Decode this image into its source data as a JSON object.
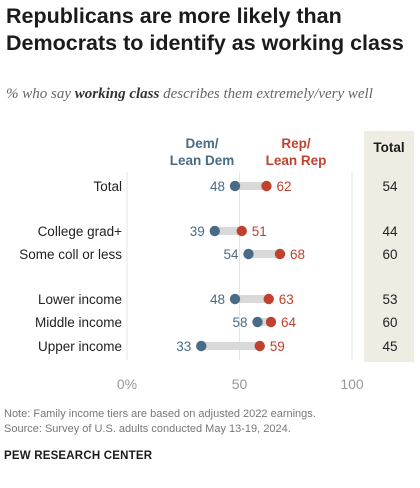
{
  "title": "Republicans are more likely than Democrats to identify as working class",
  "subtitle": {
    "pre": "% who say ",
    "emphasis": "working class",
    "post": " describes them extremely/very well"
  },
  "legend": {
    "dem": "Dem/\nLean Dem",
    "rep": "Rep/\nLean Rep",
    "total": "Total"
  },
  "colors": {
    "dem": "#4a6b86",
    "rep": "#c0412e",
    "connector": "#d9d9d9",
    "total_panel": "#efede3"
  },
  "chart_data": {
    "type": "dot-plot",
    "xlim": [
      0,
      100
    ],
    "xticks": [
      {
        "value": 0,
        "label": "0%"
      },
      {
        "value": 50,
        "label": "50"
      },
      {
        "value": 100,
        "label": "100"
      }
    ],
    "rows": [
      {
        "label": "Total",
        "dem": 48,
        "rep": 62,
        "total": 54
      },
      {
        "label": "College grad+",
        "dem": 39,
        "rep": 51,
        "total": 44
      },
      {
        "label": "Some coll or less",
        "dem": 54,
        "rep": 68,
        "total": 60
      },
      {
        "label": "Lower income",
        "dem": 48,
        "rep": 63,
        "total": 53
      },
      {
        "label": "Middle income",
        "dem": 58,
        "rep": 64,
        "total": 60
      },
      {
        "label": "Upper income",
        "dem": 33,
        "rep": 59,
        "total": 45
      }
    ]
  },
  "footer": {
    "note": "Note: Family income tiers are based on adjusted 2022 earnings.",
    "source": "Source: Survey of U.S. adults conducted May 13-19, 2024.",
    "brand": "PEW RESEARCH CENTER"
  }
}
